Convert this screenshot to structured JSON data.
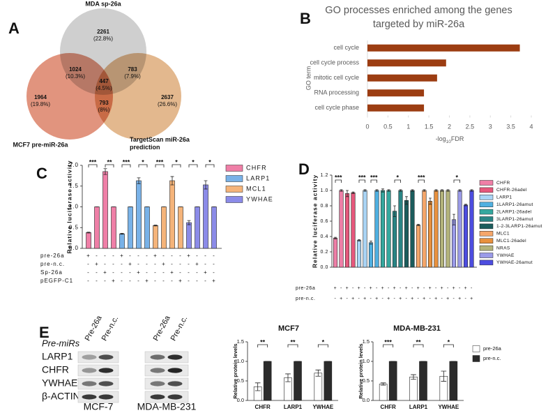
{
  "panel_labels": [
    "A",
    "B",
    "C",
    "D",
    "E"
  ],
  "chart_data": [
    {
      "type": "venn",
      "sets": [
        {
          "name": "MDA sp-26a",
          "color": "#c2c2c2"
        },
        {
          "name": "MCF7 pre-miR-26a",
          "color": "#d9765a"
        },
        {
          "name": "TargetScan miR-26a prediction",
          "color": "#dba46e"
        }
      ],
      "values": [
        2261,
        1024,
        783,
        447,
        1964,
        793,
        2637
      ],
      "share_labels": [
        "(22.8%)",
        "(10.3%)",
        "(7.9%)",
        "(4.5%)",
        "(19.8%)",
        "(8%)",
        "(26.6%)"
      ]
    },
    {
      "type": "hbar",
      "title": "GO processes enriched among the genes targeted by miR-26a",
      "ylabel": "GO term",
      "xlabel": [
        "-log",
        "10",
        "FDR"
      ],
      "categories": [
        "cell cycle",
        "cell cycle process",
        "mitotic cell cycle",
        "RNA processing",
        "cell cycle phase"
      ],
      "values": [
        3.72,
        1.92,
        1.7,
        1.38,
        1.38
      ],
      "color": "#9c3d12",
      "xlim": [
        0,
        4
      ],
      "xticks": [
        0,
        0.5,
        1,
        1.5,
        2,
        2.5,
        3,
        3.5,
        4
      ]
    },
    {
      "type": "bar",
      "ylabel": "Relative luciferase activity",
      "ylim": [
        0,
        2
      ],
      "yticks": [
        {
          "value": 0,
          "label": "0.0"
        },
        {
          "value": 0.5,
          "label": "0.5"
        },
        {
          "value": 1,
          "label": "1.0"
        },
        {
          "value": 1.5,
          "label": "1.5"
        },
        {
          "value": 2,
          "label": "2.0"
        }
      ],
      "series": [
        {
          "name": "CHFR",
          "color": "#ef7fa7",
          "values": [
            0.38,
            1,
            1.85,
            1
          ],
          "errors": [
            0.01,
            0,
            0.07,
            0
          ],
          "significance": [
            "***",
            "**"
          ]
        },
        {
          "name": "LARP1",
          "color": "#79b2e8",
          "values": [
            0.35,
            1,
            1.63,
            1
          ],
          "errors": [
            0.01,
            0,
            0.07,
            0
          ],
          "significance": [
            "***",
            "*"
          ]
        },
        {
          "name": "MCL1",
          "color": "#f5b47a",
          "values": [
            0.55,
            1,
            1.63,
            1
          ],
          "errors": [
            0.01,
            0,
            0.1,
            0
          ],
          "significance": [
            "***",
            "*"
          ]
        },
        {
          "name": "YWHAE",
          "color": "#8b8be8",
          "values": [
            0.62,
            1,
            1.53,
            1
          ],
          "errors": [
            0.05,
            0,
            0.1,
            0
          ],
          "significance": [
            "*",
            "*"
          ]
        }
      ],
      "conditions": [
        {
          "name": "pre-26a",
          "signs": [
            "+",
            "-",
            "-",
            "-",
            "+",
            "-",
            "-",
            "-",
            "+",
            "-",
            "-",
            "-",
            "+",
            "-",
            "-",
            "-"
          ]
        },
        {
          "name": "pre-n.c.",
          "signs": [
            "-",
            "+",
            "-",
            "-",
            "-",
            "+",
            "-",
            "-",
            "-",
            "+",
            "-",
            "-",
            "-",
            "+",
            "-",
            "-"
          ]
        },
        {
          "name": "Sp-26a",
          "signs": [
            "-",
            "-",
            "+",
            "-",
            "-",
            "-",
            "+",
            "-",
            "-",
            "-",
            "+",
            "-",
            "-",
            "-",
            "+",
            "-"
          ]
        },
        {
          "name": "pEGFP-C1",
          "signs": [
            "-",
            "-",
            "-",
            "+",
            "-",
            "-",
            "-",
            "+",
            "-",
            "-",
            "-",
            "+",
            "-",
            "-",
            "-",
            "+"
          ]
        }
      ]
    },
    {
      "type": "bar",
      "ylabel": "Relative luciferase activity",
      "ylim": [
        0,
        1.2
      ],
      "yticks": [
        {
          "value": 0,
          "label": "0.0"
        },
        {
          "value": 0.2,
          "label": "0.2"
        },
        {
          "value": 0.4,
          "label": "0.4"
        },
        {
          "value": 0.6,
          "label": "0.6"
        },
        {
          "value": 0.8,
          "label": "0.8"
        },
        {
          "value": 1,
          "label": "1.0"
        },
        {
          "value": 1.2,
          "label": "1.2"
        }
      ],
      "series": [
        {
          "name": "CHFR",
          "color": "#ef7fa7",
          "values": [
            0.38,
            1
          ],
          "errors": [
            0.01,
            0.01
          ],
          "significance": "***"
        },
        {
          "name": "CHFR-26adel",
          "color": "#e6587c",
          "values": [
            0.96,
            0.97
          ],
          "errors": [
            0.04,
            0.01
          ]
        },
        {
          "name": "LARP1",
          "color": "#a9d4f5",
          "values": [
            0.35,
            1
          ],
          "errors": [
            0.01,
            0.01
          ],
          "significance": "***"
        },
        {
          "name": "1LARP1-26amut",
          "color": "#4fafe0",
          "values": [
            0.32,
            1
          ],
          "errors": [
            0.02,
            0.01
          ],
          "significance": "***"
        },
        {
          "name": "2LARP1-26adel",
          "color": "#35a89f",
          "values": [
            1,
            1
          ],
          "errors": [
            0.02,
            0.01
          ]
        },
        {
          "name": "3LARP1-26amut",
          "color": "#2a8585",
          "values": [
            0.73,
            1
          ],
          "errors": [
            0.07,
            0.01
          ],
          "significance": "*"
        },
        {
          "name": "1-2-3LARP1-26amut",
          "color": "#1c5d5d",
          "values": [
            0.87,
            1
          ],
          "errors": [
            0.05,
            0.01
          ]
        },
        {
          "name": "MLC1",
          "color": "#f5a66a",
          "values": [
            0.55,
            1
          ],
          "errors": [
            0.01,
            0.01
          ],
          "significance": "***"
        },
        {
          "name": "MLC1-26adel",
          "color": "#e8913e",
          "values": [
            0.86,
            1
          ],
          "errors": [
            0.04,
            0.01
          ]
        },
        {
          "name": "NRAS",
          "color": "#b3b37b",
          "values": [
            1,
            1
          ],
          "errors": [
            0.01,
            0.01
          ]
        },
        {
          "name": "YWHAE",
          "color": "#9a9ae8",
          "values": [
            0.62,
            1
          ],
          "errors": [
            0.07,
            0.01
          ],
          "significance": "*"
        },
        {
          "name": "YWHAE-26amut",
          "color": "#4d4de0",
          "values": [
            0.81,
            1
          ],
          "errors": [
            0.01,
            0.01
          ]
        }
      ],
      "conditions": [
        {
          "name": "pre-26a",
          "signs": [
            "+",
            "-",
            "+",
            "-",
            "+",
            "-",
            "+",
            "-",
            "+",
            "-",
            "+",
            "-",
            "+",
            "-",
            "+",
            "-",
            "+",
            "-",
            "+",
            "-",
            "+",
            "-",
            "+",
            "-"
          ]
        },
        {
          "name": "pre-n.c.",
          "signs": [
            "-",
            "+",
            "-",
            "+",
            "-",
            "+",
            "-",
            "+",
            "-",
            "+",
            "-",
            "+",
            "-",
            "+",
            "-",
            "+",
            "-",
            "+",
            "-",
            "+",
            "-",
            "+",
            "-",
            "+"
          ]
        }
      ]
    },
    {
      "type": "bar",
      "title": "MCF7",
      "ylabel": "Relative protein levels",
      "categories": [
        "CHFR",
        "LARP1",
        "YWHAE"
      ],
      "series": [
        {
          "color": "#ffffff",
          "values": [
            0.35,
            0.58,
            0.7
          ],
          "errors": [
            0.1,
            0.1,
            0.08
          ]
        },
        {
          "color": "#2b2b2b",
          "values": [
            1,
            1,
            1
          ],
          "errors": [
            0,
            0,
            0
          ]
        }
      ],
      "significance": [
        "**",
        "**",
        "*"
      ],
      "ylim": [
        0,
        1.5
      ],
      "yticks": [
        {
          "value": 0,
          "label": "0.0"
        },
        {
          "value": 0.5,
          "label": "0.5"
        },
        {
          "value": 1,
          "label": "1.0"
        },
        {
          "value": 1.5,
          "label": "1.5"
        }
      ]
    },
    {
      "type": "bar",
      "title": "MDA-MB-231",
      "ylabel": "Relative protein levels",
      "categories": [
        "CHFR",
        "LARP1",
        "YWHAE"
      ],
      "series": [
        {
          "name": "pre-26a",
          "color": "#ffffff",
          "values": [
            0.42,
            0.6,
            0.62
          ],
          "errors": [
            0.03,
            0.06,
            0.13
          ]
        },
        {
          "name": "pre-n.c.",
          "color": "#2b2b2b",
          "values": [
            1,
            1,
            1
          ],
          "errors": [
            0,
            0,
            0
          ]
        }
      ],
      "significance": [
        "***",
        "**",
        "*"
      ],
      "ylim": [
        0,
        1.5
      ],
      "yticks": [
        {
          "value": 0,
          "label": "0.0"
        },
        {
          "value": 0.5,
          "label": "0.5"
        },
        {
          "value": 1,
          "label": "1.0"
        },
        {
          "value": 1.5,
          "label": "1.5"
        }
      ]
    }
  ],
  "blot": {
    "header": "Pre-miRs",
    "lanes": [
      "Pre-26a",
      "Pre-n.c.",
      "Pre-26a",
      "Pre-n.c."
    ],
    "proteins": [
      "LARP1",
      "CHFR",
      "YWHAE",
      "β-ACTIN"
    ],
    "cell_lines": [
      "MCF-7",
      "MDA-MB-231"
    ]
  }
}
